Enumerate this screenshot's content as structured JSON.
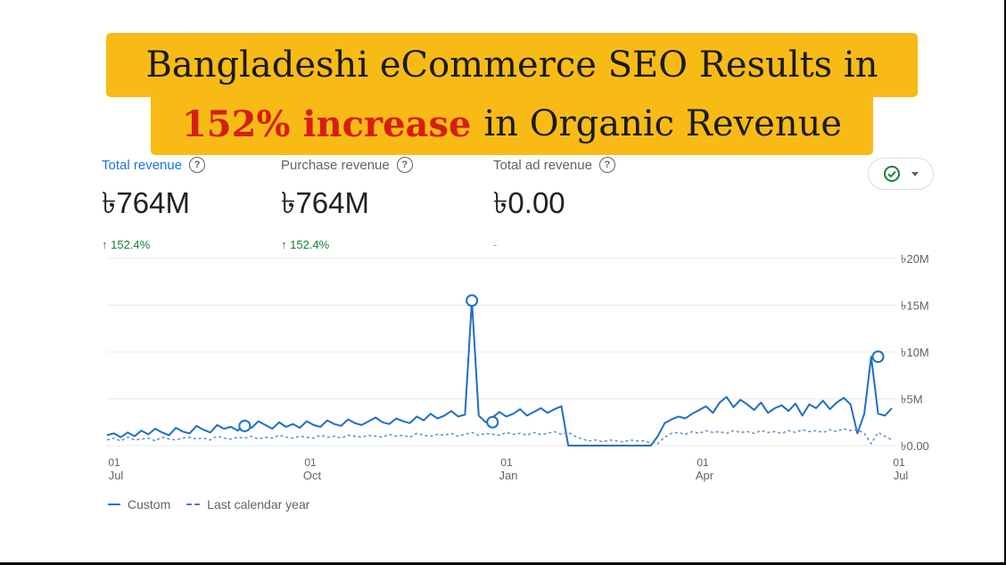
{
  "banner": {
    "line1": "Bangladeshi eCommerce SEO Results in",
    "line2_highlight": "152% increase",
    "line2_rest": "in Organic Revenue"
  },
  "metrics": [
    {
      "label": "Total revenue",
      "value": "৳764M",
      "change": "↑ 152.4%",
      "active": true
    },
    {
      "label": "Purchase revenue",
      "value": "৳764M",
      "change": "↑ 152.4%",
      "active": false
    },
    {
      "label": "Total ad revenue",
      "value": "৳0.00",
      "change": "-",
      "active": false
    }
  ],
  "status_icon": "check-circle-icon",
  "colors": {
    "accent": "#1a73e8",
    "banner": "#f8bb16",
    "highlight": "#d61e14",
    "positive": "#188038"
  },
  "legend": {
    "custom": "Custom",
    "previous": "Last calendar year"
  },
  "chart_data": {
    "type": "line",
    "xlabels": [
      {
        "day": "01",
        "month": "Jul"
      },
      {
        "day": "01",
        "month": "Oct"
      },
      {
        "day": "01",
        "month": "Jan"
      },
      {
        "day": "01",
        "month": "Apr"
      },
      {
        "day": "01",
        "month": "Jul"
      }
    ],
    "x_range": [
      "Jul 01",
      "Jul 01 (next year)"
    ],
    "y_ticks": [
      "৳20M",
      "৳15M",
      "৳10M",
      "৳5M",
      "৳0.00"
    ],
    "ylim": [
      0,
      20
    ],
    "y_unit": "M",
    "grid": true,
    "series": [
      {
        "name": "Custom",
        "style": "solid",
        "values": [
          1.1,
          1.3,
          0.9,
          1.4,
          1.0,
          1.6,
          1.2,
          1.8,
          1.4,
          1.1,
          1.9,
          1.5,
          1.3,
          2.1,
          1.7,
          1.4,
          2.2,
          1.8,
          2.0,
          1.6,
          2.4,
          1.9,
          2.6,
          2.2,
          1.8,
          2.5,
          2.0,
          2.3,
          1.9,
          2.6,
          2.2,
          2.0,
          2.7,
          2.3,
          2.1,
          2.8,
          2.4,
          2.2,
          2.6,
          3.0,
          2.5,
          2.3,
          2.9,
          2.6,
          2.4,
          3.1,
          2.7,
          3.4,
          2.9,
          3.2,
          3.7,
          3.1,
          3.3,
          15.5,
          3.2,
          2.5,
          3.0,
          3.6,
          3.1,
          3.4,
          3.9,
          3.2,
          3.6,
          4.0,
          3.5,
          3.9,
          4.2,
          0.0,
          0.0,
          0.0,
          0.0,
          0.0,
          0.0,
          0.0,
          0.0,
          0.0,
          0.0,
          0.0,
          0.0,
          0.0,
          1.0,
          2.4,
          2.8,
          3.1,
          2.9,
          3.4,
          3.8,
          4.2,
          3.5,
          4.6,
          5.2,
          4.1,
          4.9,
          4.4,
          3.8,
          4.6,
          3.5,
          4.0,
          4.3,
          3.7,
          4.5,
          3.2,
          4.4,
          4.0,
          4.8,
          3.9,
          4.6,
          5.1,
          4.4,
          1.3,
          3.4,
          9.5,
          3.4,
          3.2,
          4.0
        ],
        "markers": [
          {
            "x": 53,
            "value": 15.5
          },
          {
            "x": 20,
            "value": 2.1
          },
          {
            "x": 56,
            "value": 2.5
          },
          {
            "x": 112,
            "value": 9.5
          }
        ]
      },
      {
        "name": "Last calendar year",
        "style": "dashed",
        "values": [
          0.6,
          0.8,
          0.5,
          0.9,
          0.6,
          0.7,
          0.8,
          0.5,
          0.9,
          0.7,
          0.6,
          0.8,
          0.9,
          0.7,
          0.8,
          0.6,
          1.0,
          0.8,
          0.7,
          0.9,
          0.8,
          1.0,
          0.7,
          0.9,
          0.8,
          1.1,
          0.9,
          0.8,
          1.0,
          0.9,
          0.8,
          1.1,
          0.9,
          1.0,
          0.8,
          1.1,
          1.0,
          0.9,
          1.1,
          1.0,
          0.9,
          1.2,
          1.0,
          1.1,
          0.9,
          1.3,
          1.1,
          1.0,
          1.2,
          1.1,
          1.3,
          1.0,
          1.2,
          1.4,
          1.1,
          1.3,
          1.2,
          1.1,
          1.4,
          1.2,
          1.3,
          1.1,
          1.4,
          1.2,
          1.3,
          1.5,
          1.2,
          1.4,
          1.0,
          0.7,
          0.5,
          0.6,
          0.4,
          0.6,
          0.5,
          0.4,
          0.6,
          0.5,
          0.5,
          0.3,
          0.2,
          0.9,
          1.3,
          1.4,
          1.2,
          1.5,
          1.3,
          1.6,
          1.4,
          1.5,
          1.3,
          1.6,
          1.4,
          1.5,
          1.3,
          1.6,
          1.4,
          1.5,
          1.3,
          1.6,
          1.4,
          1.7,
          1.5,
          1.6,
          1.4,
          1.7,
          1.5,
          1.8,
          1.6,
          1.7,
          1.3,
          0.2,
          1.4,
          1.0,
          0.6
        ]
      }
    ]
  }
}
